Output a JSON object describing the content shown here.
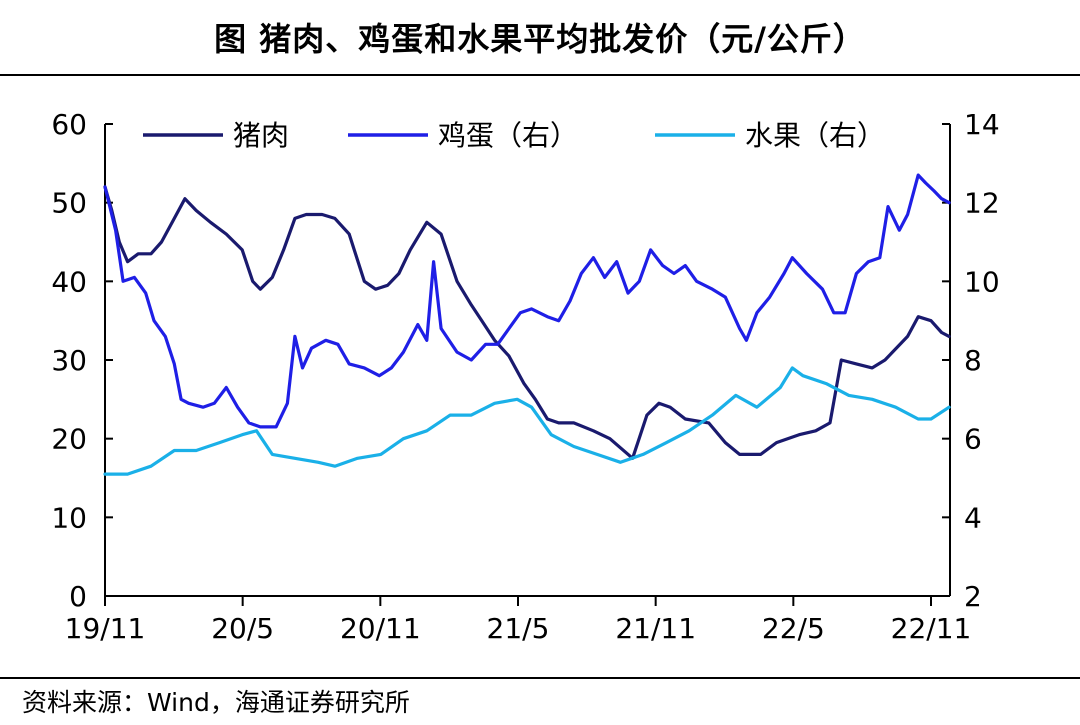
{
  "header": {
    "title": "图  猪肉、鸡蛋和水果平均批发价（元/公斤）"
  },
  "footer": {
    "source": "资料来源：Wind，海通证券研究所"
  },
  "chart_data": {
    "type": "line",
    "title": "图  猪肉、鸡蛋和水果平均批发价（元/公斤）",
    "x_ticks": [
      "19/11",
      "20/5",
      "20/11",
      "21/5",
      "21/11",
      "22/5",
      "22/11"
    ],
    "y_left": {
      "range": [
        0,
        60
      ],
      "ticks": [
        "0",
        "10",
        "20",
        "30",
        "40",
        "50",
        "60"
      ]
    },
    "y_right": {
      "range": [
        2,
        14
      ],
      "ticks": [
        "2",
        "4",
        "6",
        "8",
        "10",
        "12",
        "14"
      ]
    },
    "grid": false,
    "legend_position": "top",
    "series": [
      {
        "name": "猪肉",
        "axis": "left",
        "color": "#1a1a6e",
        "points": [
          [
            "2019-11-01",
            52
          ],
          [
            "2019-11-10",
            49
          ],
          [
            "2019-11-20",
            45
          ],
          [
            "2019-12-01",
            42.5
          ],
          [
            "2019-12-15",
            43.5
          ],
          [
            "2020-01-01",
            43.5
          ],
          [
            "2020-01-15",
            45
          ],
          [
            "2020-02-01",
            48
          ],
          [
            "2020-02-15",
            50.5
          ],
          [
            "2020-03-01",
            49
          ],
          [
            "2020-03-20",
            47.5
          ],
          [
            "2020-04-10",
            46
          ],
          [
            "2020-05-01",
            44
          ],
          [
            "2020-05-15",
            40
          ],
          [
            "2020-05-25",
            39
          ],
          [
            "2020-06-10",
            40.5
          ],
          [
            "2020-06-25",
            44
          ],
          [
            "2020-07-10",
            48
          ],
          [
            "2020-07-25",
            48.5
          ],
          [
            "2020-08-15",
            48.5
          ],
          [
            "2020-09-01",
            48
          ],
          [
            "2020-09-20",
            46
          ],
          [
            "2020-10-10",
            40
          ],
          [
            "2020-10-25",
            39
          ],
          [
            "2020-11-10",
            39.5
          ],
          [
            "2020-11-25",
            41
          ],
          [
            "2020-12-10",
            44
          ],
          [
            "2021-01-01",
            47.5
          ],
          [
            "2021-01-20",
            46
          ],
          [
            "2021-02-10",
            40
          ],
          [
            "2021-03-01",
            37
          ],
          [
            "2021-03-15",
            35
          ],
          [
            "2021-04-01",
            32.5
          ],
          [
            "2021-04-20",
            30.5
          ],
          [
            "2021-05-10",
            27
          ],
          [
            "2021-05-25",
            25
          ],
          [
            "2021-06-10",
            22.5
          ],
          [
            "2021-06-25",
            22
          ],
          [
            "2021-07-15",
            22
          ],
          [
            "2021-08-10",
            21
          ],
          [
            "2021-09-01",
            20
          ],
          [
            "2021-10-01",
            17.5
          ],
          [
            "2021-10-20",
            23
          ],
          [
            "2021-11-05",
            24.5
          ],
          [
            "2021-11-20",
            24
          ],
          [
            "2021-12-10",
            22.5
          ],
          [
            "2022-01-10",
            22
          ],
          [
            "2022-02-01",
            19.5
          ],
          [
            "2022-02-20",
            18
          ],
          [
            "2022-03-20",
            18
          ],
          [
            "2022-04-10",
            19.5
          ],
          [
            "2022-05-10",
            20.5
          ],
          [
            "2022-06-01",
            21
          ],
          [
            "2022-06-20",
            22
          ],
          [
            "2022-07-05",
            30
          ],
          [
            "2022-07-25",
            29.5
          ],
          [
            "2022-08-15",
            29
          ],
          [
            "2022-09-01",
            30
          ],
          [
            "2022-10-01",
            33
          ],
          [
            "2022-10-15",
            35.5
          ],
          [
            "2022-11-01",
            35
          ],
          [
            "2022-11-15",
            33.5
          ],
          [
            "2022-11-25",
            33
          ]
        ]
      },
      {
        "name": "鸡蛋（右）",
        "axis": "right",
        "color": "#1f1fe6",
        "points": [
          [
            "2019-11-01",
            12.4
          ],
          [
            "2019-11-15",
            11.3
          ],
          [
            "2019-11-25",
            10
          ],
          [
            "2019-12-10",
            10.1
          ],
          [
            "2019-12-25",
            9.7
          ],
          [
            "2020-01-05",
            9
          ],
          [
            "2020-01-20",
            8.6
          ],
          [
            "2020-02-01",
            7.9
          ],
          [
            "2020-02-10",
            7
          ],
          [
            "2020-02-20",
            6.9
          ],
          [
            "2020-03-10",
            6.8
          ],
          [
            "2020-03-25",
            6.9
          ],
          [
            "2020-04-10",
            7.3
          ],
          [
            "2020-04-25",
            6.8
          ],
          [
            "2020-05-10",
            6.4
          ],
          [
            "2020-05-25",
            6.3
          ],
          [
            "2020-06-15",
            6.3
          ],
          [
            "2020-06-30",
            6.9
          ],
          [
            "2020-07-10",
            8.6
          ],
          [
            "2020-07-20",
            7.8
          ],
          [
            "2020-08-01",
            8.3
          ],
          [
            "2020-08-20",
            8.5
          ],
          [
            "2020-09-05",
            8.4
          ],
          [
            "2020-09-20",
            7.9
          ],
          [
            "2020-10-10",
            7.8
          ],
          [
            "2020-10-30",
            7.6
          ],
          [
            "2020-11-15",
            7.8
          ],
          [
            "2020-12-01",
            8.2
          ],
          [
            "2020-12-20",
            8.9
          ],
          [
            "2021-01-01",
            8.5
          ],
          [
            "2021-01-10",
            10.5
          ],
          [
            "2021-01-20",
            8.8
          ],
          [
            "2021-02-10",
            8.2
          ],
          [
            "2021-03-01",
            8
          ],
          [
            "2021-03-20",
            8.4
          ],
          [
            "2021-04-05",
            8.4
          ],
          [
            "2021-04-20",
            8.8
          ],
          [
            "2021-05-05",
            9.2
          ],
          [
            "2021-05-20",
            9.3
          ],
          [
            "2021-06-10",
            9.1
          ],
          [
            "2021-06-25",
            9
          ],
          [
            "2021-07-10",
            9.5
          ],
          [
            "2021-07-25",
            10.2
          ],
          [
            "2021-08-10",
            10.6
          ],
          [
            "2021-08-25",
            10.1
          ],
          [
            "2021-09-10",
            10.5
          ],
          [
            "2021-09-25",
            9.7
          ],
          [
            "2021-10-10",
            10
          ],
          [
            "2021-10-25",
            10.8
          ],
          [
            "2021-11-10",
            10.4
          ],
          [
            "2021-11-25",
            10.2
          ],
          [
            "2021-12-10",
            10.4
          ],
          [
            "2021-12-25",
            10
          ],
          [
            "2022-01-15",
            9.8
          ],
          [
            "2022-02-01",
            9.6
          ],
          [
            "2022-02-20",
            8.8
          ],
          [
            "2022-03-01",
            8.5
          ],
          [
            "2022-03-15",
            9.2
          ],
          [
            "2022-04-01",
            9.6
          ],
          [
            "2022-04-20",
            10.2
          ],
          [
            "2022-05-01",
            10.6
          ],
          [
            "2022-05-20",
            10.2
          ],
          [
            "2022-06-10",
            9.8
          ],
          [
            "2022-06-25",
            9.2
          ],
          [
            "2022-07-10",
            9.2
          ],
          [
            "2022-07-25",
            10.2
          ],
          [
            "2022-08-10",
            10.5
          ],
          [
            "2022-08-25",
            10.6
          ],
          [
            "2022-09-05",
            11.9
          ],
          [
            "2022-09-20",
            11.3
          ],
          [
            "2022-10-01",
            11.7
          ],
          [
            "2022-10-15",
            12.7
          ],
          [
            "2022-10-25",
            12.5
          ],
          [
            "2022-11-05",
            12.3
          ],
          [
            "2022-11-15",
            12.1
          ],
          [
            "2022-11-25",
            12
          ]
        ]
      },
      {
        "name": "水果（右）",
        "axis": "right",
        "color": "#1ab0e8",
        "points": [
          [
            "2019-11-01",
            5.1
          ],
          [
            "2019-12-01",
            5.1
          ],
          [
            "2020-01-01",
            5.3
          ],
          [
            "2020-02-01",
            5.7
          ],
          [
            "2020-03-01",
            5.7
          ],
          [
            "2020-04-01",
            5.9
          ],
          [
            "2020-05-01",
            6.1
          ],
          [
            "2020-05-20",
            6.2
          ],
          [
            "2020-06-10",
            5.6
          ],
          [
            "2020-07-10",
            5.5
          ],
          [
            "2020-08-10",
            5.4
          ],
          [
            "2020-09-01",
            5.3
          ],
          [
            "2020-10-01",
            5.5
          ],
          [
            "2020-11-01",
            5.6
          ],
          [
            "2020-12-01",
            6
          ],
          [
            "2021-01-01",
            6.2
          ],
          [
            "2021-02-01",
            6.6
          ],
          [
            "2021-03-01",
            6.6
          ],
          [
            "2021-04-01",
            6.9
          ],
          [
            "2021-05-01",
            7
          ],
          [
            "2021-05-20",
            6.8
          ],
          [
            "2021-06-15",
            6.1
          ],
          [
            "2021-07-15",
            5.8
          ],
          [
            "2021-08-15",
            5.6
          ],
          [
            "2021-09-15",
            5.4
          ],
          [
            "2021-10-15",
            5.6
          ],
          [
            "2021-11-15",
            5.9
          ],
          [
            "2021-12-15",
            6.2
          ],
          [
            "2022-01-15",
            6.6
          ],
          [
            "2022-02-15",
            7.1
          ],
          [
            "2022-03-15",
            6.8
          ],
          [
            "2022-04-15",
            7.3
          ],
          [
            "2022-05-01",
            7.8
          ],
          [
            "2022-05-15",
            7.6
          ],
          [
            "2022-06-15",
            7.4
          ],
          [
            "2022-07-15",
            7.1
          ],
          [
            "2022-08-15",
            7
          ],
          [
            "2022-09-15",
            6.8
          ],
          [
            "2022-10-15",
            6.5
          ],
          [
            "2022-11-01",
            6.5
          ],
          [
            "2022-11-25",
            6.8
          ]
        ]
      }
    ]
  }
}
